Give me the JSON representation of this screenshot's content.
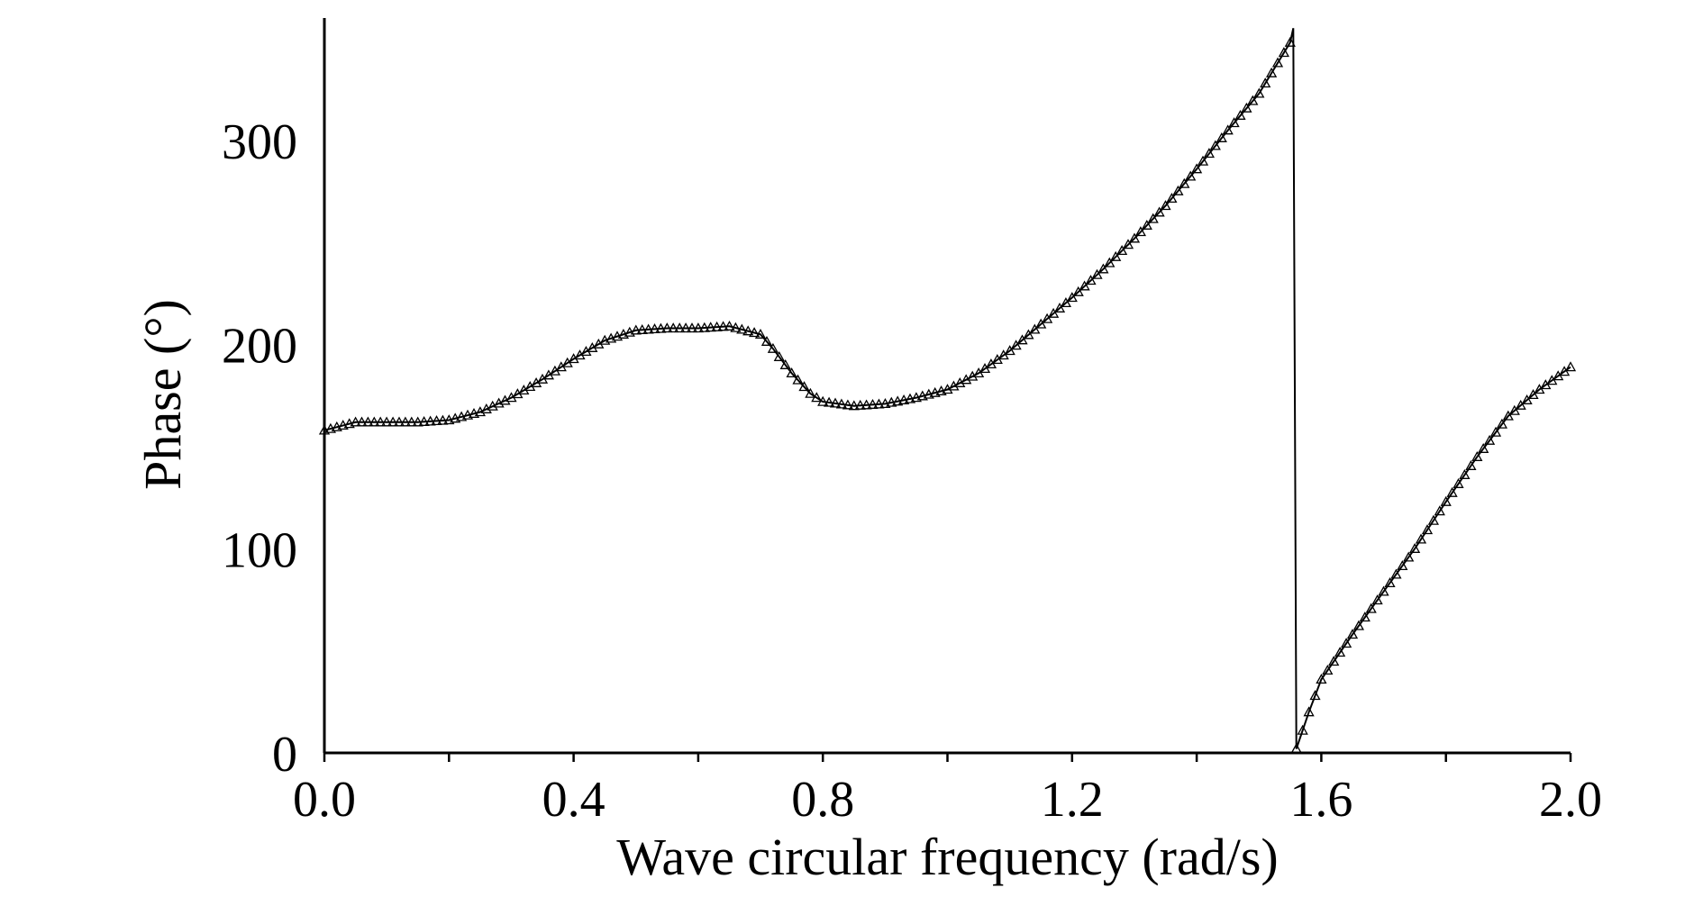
{
  "chart_data": {
    "type": "line",
    "title": "",
    "xlabel": "Wave circular frequency (rad/s)",
    "ylabel": "Phase (°)",
    "xlim": [
      0,
      2.0
    ],
    "ylim": [
      0,
      360
    ],
    "xticks": [
      "0.0",
      "0.4",
      "0.8",
      "1.2",
      "1.6",
      "2.0"
    ],
    "yticks": [
      "0",
      "100",
      "200",
      "300"
    ],
    "grid": false,
    "legend": "none",
    "marker": "triangle",
    "color": "#000000",
    "series": [
      {
        "x": [
          0.0,
          0.05,
          0.1,
          0.15,
          0.2,
          0.25,
          0.3,
          0.35,
          0.4,
          0.45,
          0.5,
          0.55,
          0.6,
          0.65,
          0.7,
          0.72,
          0.75,
          0.78,
          0.8,
          0.85,
          0.9,
          0.95,
          1.0,
          1.05,
          1.1,
          1.15,
          1.2,
          1.25,
          1.3,
          1.35,
          1.4,
          1.45,
          1.5,
          1.55,
          1.555,
          1.56,
          1.58,
          1.6,
          1.65,
          1.7,
          1.75,
          1.8,
          1.85,
          1.9,
          1.95,
          2.0
        ],
        "y": [
          158,
          162,
          162,
          162,
          163,
          167,
          174,
          183,
          193,
          202,
          207,
          208,
          208,
          209,
          205,
          198,
          186,
          176,
          172,
          170,
          171,
          174,
          178,
          186,
          197,
          210,
          223,
          237,
          252,
          268,
          286,
          305,
          323,
          348,
          355,
          2,
          20,
          36,
          58,
          79,
          100,
          123,
          145,
          165,
          178,
          189
        ]
      }
    ]
  }
}
